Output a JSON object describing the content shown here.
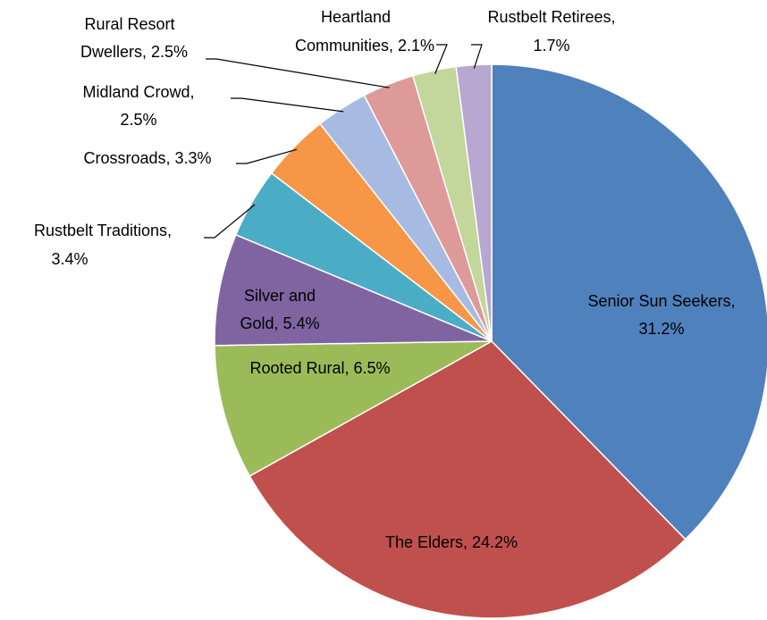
{
  "chart_data": {
    "type": "pie",
    "values": [
      31.2,
      24.2,
      6.5,
      5.4,
      3.4,
      3.3,
      2.5,
      2.5,
      2.1,
      1.7
    ],
    "value_labels": [
      [
        "Senior Sun Seekers,",
        "31.2%"
      ],
      [
        "The Elders, 24.2%"
      ],
      [
        "Rooted Rural, 6.5%"
      ],
      [
        "Silver and",
        "Gold, 5.4%"
      ],
      [
        "Rustbelt Traditions,",
        "3.4%"
      ],
      [
        "Crossroads, 3.3%"
      ],
      [
        "Midland Crowd,",
        "2.5%"
      ],
      [
        "Rural Resort",
        "Dwellers, 2.5%"
      ],
      [
        "Heartland",
        "Communities, 2.1%"
      ],
      [
        "Rustbelt Retirees,",
        "1.7%"
      ]
    ],
    "colors": [
      "#4f81bd",
      "#c0504d",
      "#9bbb59",
      "#8064a2",
      "#4bacc6",
      "#f79646",
      "#a7bbe2",
      "#dd9a98",
      "#c3d69b",
      "#b8a7d0"
    ]
  }
}
